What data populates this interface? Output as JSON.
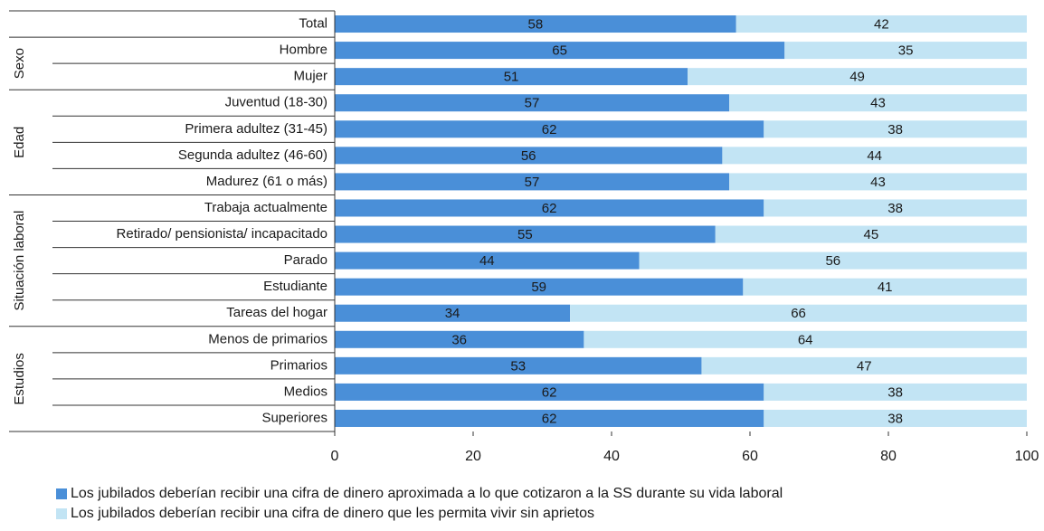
{
  "chart_data": {
    "type": "stacked-bar-horizontal",
    "categories": [
      "Total",
      "Hombre",
      "Mujer",
      "Juventud (18-30)",
      "Primera adultez (31-45)",
      "Segunda adultez (46-60)",
      "Madurez (61 o más)",
      "Trabaja actualmente",
      "Retirado/ pensionista/ incapacitado",
      "Parado",
      "Estudiante",
      "Tareas del hogar",
      "Menos de primarios",
      "Primarios",
      "Medios",
      "Superiores"
    ],
    "category_groups": [
      null,
      "Sexo",
      "Sexo",
      "Edad",
      "Edad",
      "Edad",
      "Edad",
      "Situación laboral",
      "Situación laboral",
      "Situación laboral",
      "Situación laboral",
      "Situación laboral",
      "Estudios",
      "Estudios",
      "Estudios",
      "Estudios"
    ],
    "series": [
      {
        "name": "Los jubilados deberían recibir una cifra de dinero aproximada a lo que cotizaron a la SS durante su vida laboral",
        "color": "#4a8fd8",
        "values": [
          58,
          65,
          51,
          57,
          62,
          56,
          57,
          62,
          55,
          44,
          59,
          34,
          36,
          53,
          62,
          62
        ]
      },
      {
        "name": "Los jubilados deberían recibir una cifra de dinero que les permita vivir sin aprietos",
        "color": "#c2e4f4",
        "values": [
          42,
          35,
          49,
          43,
          38,
          44,
          43,
          38,
          45,
          56,
          41,
          66,
          64,
          47,
          38,
          38
        ]
      }
    ],
    "xlim": [
      0,
      100
    ],
    "xticks": [
      0,
      20,
      40,
      60,
      80,
      100
    ]
  }
}
